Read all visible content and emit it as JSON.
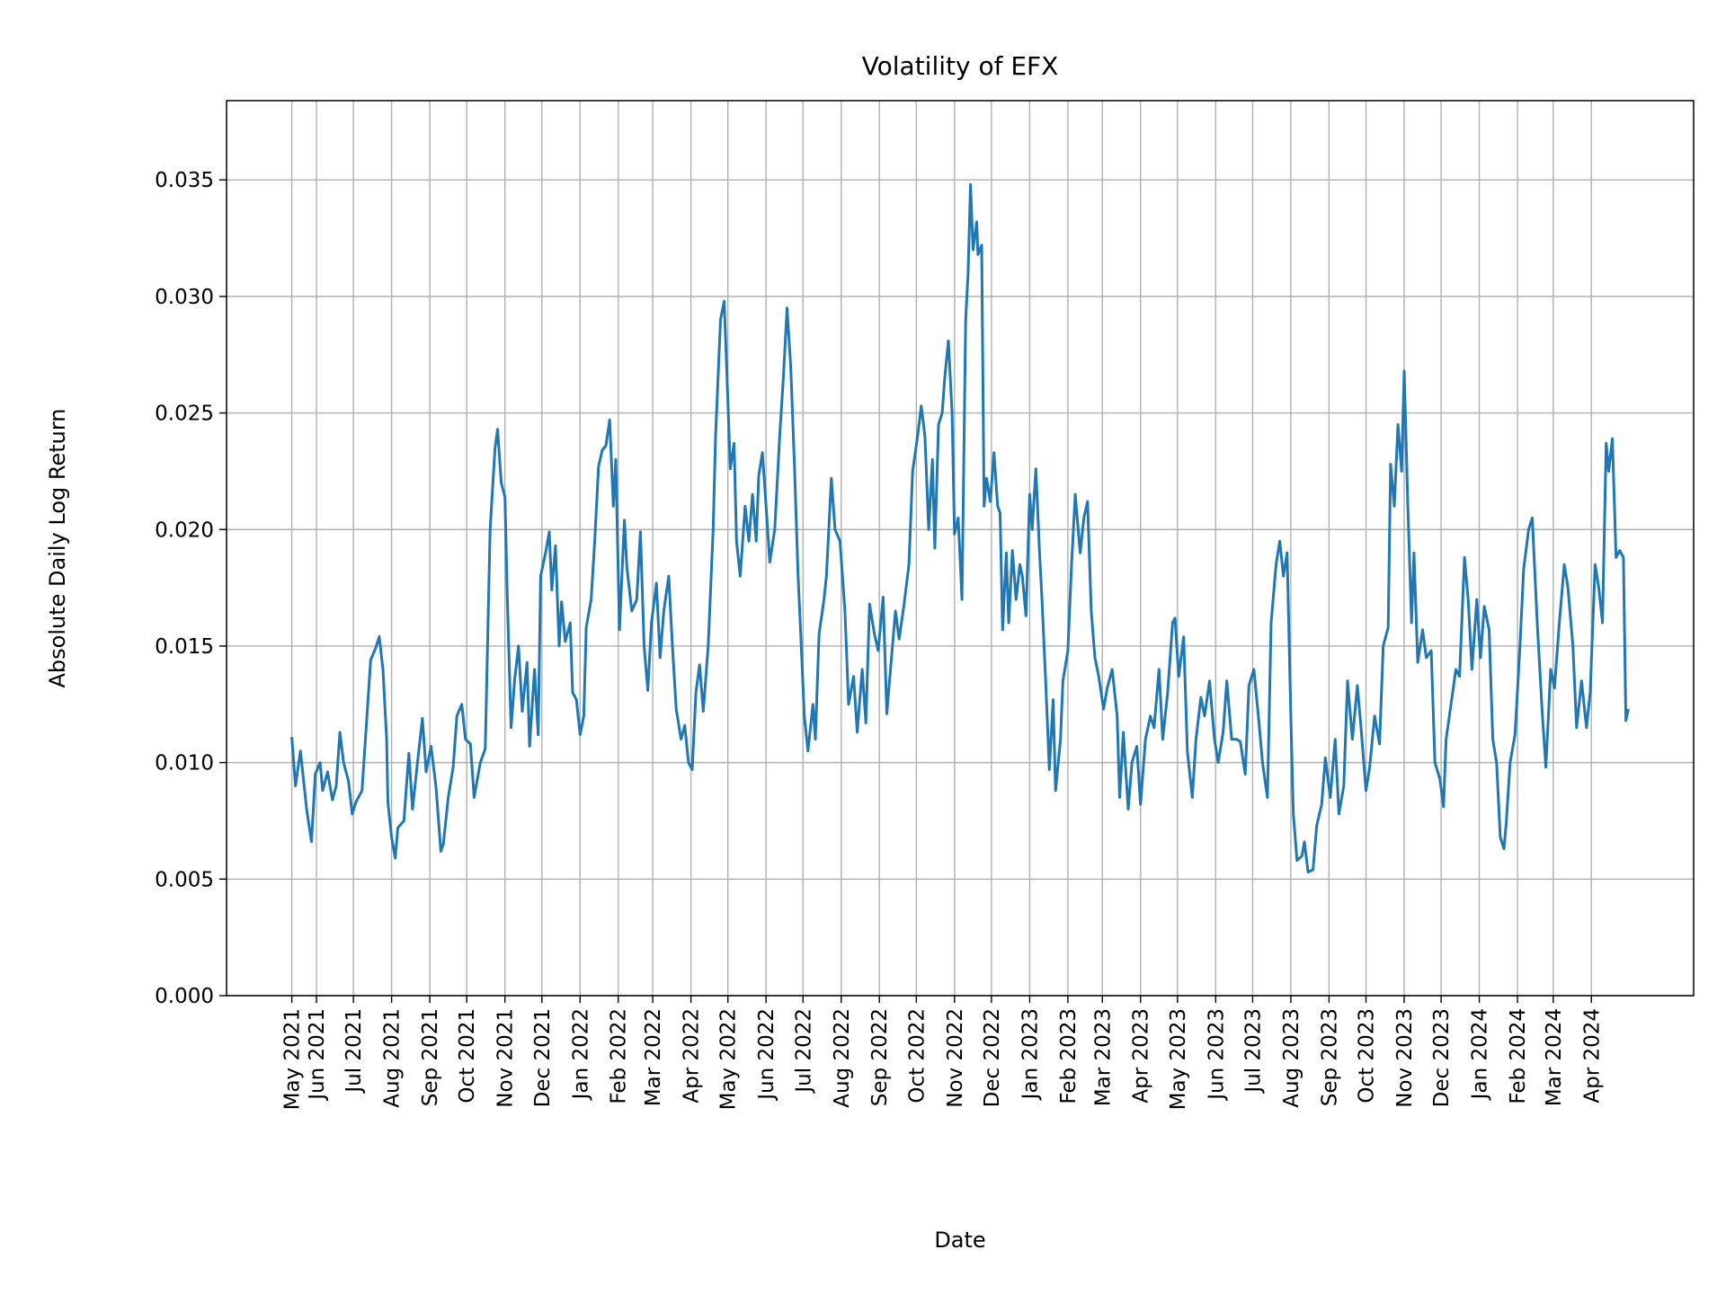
{
  "chart_data": {
    "type": "line",
    "title": "Volatility of EFX",
    "xlabel": "Date",
    "ylabel": "Absolute Daily Log Return",
    "xlim": [
      "2021-03-20",
      "2024-06-23"
    ],
    "ylim": [
      0,
      0.0384
    ],
    "grid": true,
    "colors": {
      "line": "#1f77b4",
      "grid": "#b0b0b0",
      "axes": "#000000"
    },
    "yticks": [
      0.0,
      0.005,
      0.01,
      0.015,
      0.02,
      0.025,
      0.03,
      0.035
    ],
    "ytick_labels": [
      "0.000",
      "0.005",
      "0.010",
      "0.015",
      "0.020",
      "0.025",
      "0.030",
      "0.035"
    ],
    "xticks": [
      "2021-05-12",
      "2021-06-01",
      "2021-07-01",
      "2021-08-01",
      "2021-09-01",
      "2021-10-01",
      "2021-11-01",
      "2021-12-01",
      "2022-01-01",
      "2022-02-01",
      "2022-03-01",
      "2022-04-01",
      "2022-05-01",
      "2022-06-01",
      "2022-07-01",
      "2022-08-01",
      "2022-09-01",
      "2022-10-01",
      "2022-11-01",
      "2022-12-01",
      "2023-01-01",
      "2023-02-01",
      "2023-03-01",
      "2023-04-01",
      "2023-05-01",
      "2023-06-01",
      "2023-07-01",
      "2023-08-01",
      "2023-09-01",
      "2023-10-01",
      "2023-11-01",
      "2023-12-01",
      "2024-01-01",
      "2024-02-01",
      "2024-03-01",
      "2024-04-01"
    ],
    "xtick_labels": [
      "May 2021",
      "Jun 2021",
      "Jul 2021",
      "Aug 2021",
      "Sep 2021",
      "Oct 2021",
      "Nov 2021",
      "Dec 2021",
      "Jan 2022",
      "Feb 2022",
      "Mar 2022",
      "Apr 2022",
      "May 2022",
      "Jun 2022",
      "Jul 2022",
      "Aug 2022",
      "Sep 2022",
      "Oct 2022",
      "Nov 2022",
      "Dec 2022",
      "Jan 2023",
      "Feb 2023",
      "Mar 2023",
      "Apr 2023",
      "May 2023",
      "Jun 2023",
      "Jul 2023",
      "Aug 2023",
      "Sep 2023",
      "Oct 2023",
      "Nov 2023",
      "Dec 2023",
      "Jan 2024",
      "Feb 2024",
      "Mar 2024",
      "Apr 2024"
    ],
    "series": [
      {
        "x": [
          "2021-05-12",
          "2021-05-15",
          "2021-05-19",
          "2021-05-24",
          "2021-05-28",
          "2021-05-31",
          "2021-06-04",
          "2021-06-06",
          "2021-06-10",
          "2021-06-14",
          "2021-06-17",
          "2021-06-20",
          "2021-06-23",
          "2021-06-27",
          "2021-06-30",
          "2021-07-03",
          "2021-07-08",
          "2021-07-12",
          "2021-07-15",
          "2021-07-19",
          "2021-07-22",
          "2021-07-25",
          "2021-07-28",
          "2021-07-29",
          "2021-08-01",
          "2021-08-04",
          "2021-08-06",
          "2021-08-11",
          "2021-08-15",
          "2021-08-18",
          "2021-08-22",
          "2021-08-26",
          "2021-08-29",
          "2021-09-02",
          "2021-09-06",
          "2021-09-10",
          "2021-09-12",
          "2021-09-16",
          "2021-09-20",
          "2021-09-23",
          "2021-09-27",
          "2021-09-30",
          "2021-10-04",
          "2021-10-07",
          "2021-10-12",
          "2021-10-16",
          "2021-10-20",
          "2021-10-24",
          "2021-10-26",
          "2021-10-29",
          "2021-11-01",
          "2021-11-03",
          "2021-11-06",
          "2021-11-09",
          "2021-11-12",
          "2021-11-15",
          "2021-11-19",
          "2021-11-21",
          "2021-11-25",
          "2021-11-28",
          "2021-11-30",
          "2021-12-04",
          "2021-12-07",
          "2021-12-09",
          "2021-12-12",
          "2021-12-15",
          "2021-12-17",
          "2021-12-20",
          "2021-12-24",
          "2021-12-26",
          "2021-12-29",
          "2022-01-01",
          "2022-01-04",
          "2022-01-06",
          "2022-01-10",
          "2022-01-13",
          "2022-01-16",
          "2022-01-19",
          "2022-01-22",
          "2022-01-25",
          "2022-01-28",
          "2022-01-30",
          "2022-02-02",
          "2022-02-06",
          "2022-02-08",
          "2022-02-12",
          "2022-02-16",
          "2022-02-19",
          "2022-02-22",
          "2022-02-25",
          "2022-02-28",
          "2022-03-04",
          "2022-03-07",
          "2022-03-10",
          "2022-03-14",
          "2022-03-17",
          "2022-03-20",
          "2022-03-24",
          "2022-03-27",
          "2022-03-30",
          "2022-04-02",
          "2022-04-05",
          "2022-04-08",
          "2022-04-11",
          "2022-04-15",
          "2022-04-19",
          "2022-04-21",
          "2022-04-25",
          "2022-04-28",
          "2022-04-30",
          "2022-05-03",
          "2022-05-06",
          "2022-05-08",
          "2022-05-11",
          "2022-05-15",
          "2022-05-18",
          "2022-05-21",
          "2022-05-24",
          "2022-05-26",
          "2022-05-29",
          "2022-06-01",
          "2022-06-04",
          "2022-06-08",
          "2022-06-12",
          "2022-06-15",
          "2022-06-18",
          "2022-06-21",
          "2022-06-24",
          "2022-06-27",
          "2022-06-30",
          "2022-07-02",
          "2022-07-05",
          "2022-07-09",
          "2022-07-11",
          "2022-07-14",
          "2022-07-18",
          "2022-07-20",
          "2022-07-24",
          "2022-07-27",
          "2022-07-31",
          "2022-08-04",
          "2022-08-07",
          "2022-08-11",
          "2022-08-14",
          "2022-08-18",
          "2022-08-21",
          "2022-08-24",
          "2022-08-28",
          "2022-08-31",
          "2022-09-04",
          "2022-09-07",
          "2022-09-10",
          "2022-09-14",
          "2022-09-17",
          "2022-09-21",
          "2022-09-25",
          "2022-09-28",
          "2022-10-02",
          "2022-10-05",
          "2022-10-08",
          "2022-10-11",
          "2022-10-14",
          "2022-10-16",
          "2022-10-19",
          "2022-10-22",
          "2022-10-24",
          "2022-10-27",
          "2022-10-30",
          "2022-11-01",
          "2022-11-04",
          "2022-11-07",
          "2022-11-10",
          "2022-11-12",
          "2022-11-14",
          "2022-11-16",
          "2022-11-19",
          "2022-11-20",
          "2022-11-23",
          "2022-11-25",
          "2022-11-27",
          "2022-11-30",
          "2022-12-03",
          "2022-12-06",
          "2022-12-08",
          "2022-12-10",
          "2022-12-13",
          "2022-12-15",
          "2022-12-18",
          "2022-12-21",
          "2022-12-24",
          "2022-12-26",
          "2022-12-29",
          "2023-01-01",
          "2023-01-03",
          "2023-01-06",
          "2023-01-09",
          "2023-01-11",
          "2023-01-14",
          "2023-01-17",
          "2023-01-20",
          "2023-01-22",
          "2023-01-26",
          "2023-01-28",
          "2023-02-01",
          "2023-02-04",
          "2023-02-07",
          "2023-02-11",
          "2023-02-14",
          "2023-02-17",
          "2023-02-20",
          "2023-02-23",
          "2023-02-26",
          "2023-03-02",
          "2023-03-05",
          "2023-03-09",
          "2023-03-13",
          "2023-03-15",
          "2023-03-18",
          "2023-03-22",
          "2023-03-25",
          "2023-03-29",
          "2023-04-01",
          "2023-04-05",
          "2023-04-09",
          "2023-04-12",
          "2023-04-16",
          "2023-04-19",
          "2023-04-23",
          "2023-04-27",
          "2023-04-29",
          "2023-05-02",
          "2023-05-06",
          "2023-05-09",
          "2023-05-13",
          "2023-05-16",
          "2023-05-20",
          "2023-05-23",
          "2023-05-27",
          "2023-05-31",
          "2023-06-03",
          "2023-06-07",
          "2023-06-10",
          "2023-06-14",
          "2023-06-18",
          "2023-06-21",
          "2023-06-25",
          "2023-06-28",
          "2023-07-02",
          "2023-07-06",
          "2023-07-09",
          "2023-07-13",
          "2023-07-16",
          "2023-07-20",
          "2023-07-23",
          "2023-07-26",
          "2023-07-29",
          "2023-08-01",
          "2023-08-03",
          "2023-08-06",
          "2023-08-10",
          "2023-08-12",
          "2023-08-15",
          "2023-08-19",
          "2023-08-22",
          "2023-08-26",
          "2023-08-29",
          "2023-09-02",
          "2023-09-06",
          "2023-09-09",
          "2023-09-13",
          "2023-09-16",
          "2023-09-20",
          "2023-09-24",
          "2023-09-27",
          "2023-10-01",
          "2023-10-04",
          "2023-10-08",
          "2023-10-12",
          "2023-10-15",
          "2023-10-19",
          "2023-10-21",
          "2023-10-24",
          "2023-10-27",
          "2023-10-30",
          "2023-11-01",
          "2023-11-04",
          "2023-11-07",
          "2023-11-09",
          "2023-11-12",
          "2023-11-16",
          "2023-11-19",
          "2023-11-23",
          "2023-11-26",
          "2023-11-30",
          "2023-12-03",
          "2023-12-05",
          "2023-12-09",
          "2023-12-13",
          "2023-12-16",
          "2023-12-20",
          "2023-12-23",
          "2023-12-26",
          "2023-12-30",
          "2024-01-02",
          "2024-01-05",
          "2024-01-09",
          "2024-01-12",
          "2024-01-15",
          "2024-01-18",
          "2024-01-21",
          "2024-01-23",
          "2024-01-26",
          "2024-01-30",
          "2024-02-03",
          "2024-02-06",
          "2024-02-10",
          "2024-02-13",
          "2024-02-17",
          "2024-02-21",
          "2024-02-24",
          "2024-02-28",
          "2024-03-02",
          "2024-03-06",
          "2024-03-10",
          "2024-03-13",
          "2024-03-17",
          "2024-03-20",
          "2024-03-24",
          "2024-03-28",
          "2024-03-31",
          "2024-04-04",
          "2024-04-07",
          "2024-04-10",
          "2024-04-13",
          "2024-04-15",
          "2024-04-18",
          "2024-04-21",
          "2024-04-24",
          "2024-04-27",
          "2024-04-29",
          "2024-05-01"
        ],
        "y": [
          0.0111,
          0.009,
          0.0105,
          0.008,
          0.0066,
          0.0095,
          0.01,
          0.0088,
          0.0096,
          0.0084,
          0.009,
          0.0113,
          0.01,
          0.0092,
          0.0078,
          0.0083,
          0.0088,
          0.012,
          0.0144,
          0.0149,
          0.0154,
          0.014,
          0.011,
          0.0083,
          0.0068,
          0.0059,
          0.0072,
          0.0075,
          0.0104,
          0.008,
          0.01,
          0.0119,
          0.0096,
          0.0107,
          0.009,
          0.0062,
          0.0065,
          0.0085,
          0.0098,
          0.012,
          0.0125,
          0.011,
          0.0108,
          0.0085,
          0.01,
          0.0106,
          0.02,
          0.0235,
          0.0243,
          0.022,
          0.0214,
          0.017,
          0.0115,
          0.0136,
          0.015,
          0.0122,
          0.0143,
          0.0107,
          0.014,
          0.0112,
          0.018,
          0.019,
          0.0199,
          0.0174,
          0.0193,
          0.015,
          0.0169,
          0.0152,
          0.016,
          0.013,
          0.0127,
          0.0112,
          0.012,
          0.0158,
          0.017,
          0.0196,
          0.0227,
          0.0234,
          0.0236,
          0.0247,
          0.021,
          0.023,
          0.0157,
          0.0204,
          0.0184,
          0.0165,
          0.017,
          0.0199,
          0.015,
          0.0131,
          0.016,
          0.0177,
          0.0145,
          0.0165,
          0.018,
          0.015,
          0.0123,
          0.011,
          0.0116,
          0.01,
          0.0097,
          0.013,
          0.0142,
          0.0122,
          0.015,
          0.02,
          0.024,
          0.029,
          0.0298,
          0.027,
          0.0226,
          0.0237,
          0.0195,
          0.018,
          0.021,
          0.0195,
          0.0215,
          0.0195,
          0.0223,
          0.0233,
          0.021,
          0.0186,
          0.02,
          0.024,
          0.0265,
          0.0295,
          0.027,
          0.0228,
          0.018,
          0.0145,
          0.012,
          0.0105,
          0.0125,
          0.011,
          0.0155,
          0.017,
          0.018,
          0.0222,
          0.02,
          0.0195,
          0.0165,
          0.0125,
          0.0137,
          0.0113,
          0.014,
          0.0117,
          0.0168,
          0.0155,
          0.0148,
          0.0171,
          0.0121,
          0.014,
          0.0165,
          0.0153,
          0.0168,
          0.0185,
          0.0225,
          0.024,
          0.0253,
          0.024,
          0.02,
          0.023,
          0.0192,
          0.0245,
          0.025,
          0.0265,
          0.0281,
          0.025,
          0.0198,
          0.0205,
          0.017,
          0.029,
          0.031,
          0.0348,
          0.032,
          0.0332,
          0.0318,
          0.0322,
          0.021,
          0.0222,
          0.0212,
          0.0233,
          0.021,
          0.0207,
          0.0157,
          0.019,
          0.016,
          0.0191,
          0.017,
          0.0185,
          0.018,
          0.0163,
          0.0215,
          0.02,
          0.0226,
          0.019,
          0.017,
          0.0135,
          0.0097,
          0.0127,
          0.0088,
          0.011,
          0.0135,
          0.0148,
          0.0185,
          0.0215,
          0.019,
          0.0205,
          0.0212,
          0.0165,
          0.0145,
          0.0137,
          0.0123,
          0.0132,
          0.014,
          0.012,
          0.0085,
          0.0113,
          0.008,
          0.01,
          0.0107,
          0.0082,
          0.011,
          0.012,
          0.0115,
          0.014,
          0.011,
          0.013,
          0.016,
          0.0162,
          0.0137,
          0.0154,
          0.0105,
          0.0085,
          0.011,
          0.0128,
          0.012,
          0.0135,
          0.011,
          0.01,
          0.0113,
          0.0135,
          0.011,
          0.011,
          0.0109,
          0.0095,
          0.0133,
          0.014,
          0.0118,
          0.01,
          0.0085,
          0.016,
          0.0185,
          0.0195,
          0.018,
          0.019,
          0.012,
          0.0078,
          0.0058,
          0.006,
          0.0066,
          0.0053,
          0.0054,
          0.0073,
          0.0082,
          0.0102,
          0.0085,
          0.011,
          0.0078,
          0.009,
          0.0135,
          0.011,
          0.0133,
          0.0115,
          0.0088,
          0.0098,
          0.012,
          0.0108,
          0.015,
          0.0158,
          0.0228,
          0.021,
          0.0245,
          0.0225,
          0.0268,
          0.021,
          0.016,
          0.019,
          0.0143,
          0.0157,
          0.0145,
          0.0148,
          0.01,
          0.0093,
          0.0081,
          0.011,
          0.0125,
          0.014,
          0.0137,
          0.0188,
          0.017,
          0.014,
          0.017,
          0.0145,
          0.0167,
          0.0157,
          0.011,
          0.01,
          0.0068,
          0.0063,
          0.0075,
          0.01,
          0.0112,
          0.015,
          0.0183,
          0.02,
          0.0205,
          0.016,
          0.0122,
          0.0098,
          0.014,
          0.0132,
          0.016,
          0.0185,
          0.0175,
          0.015,
          0.0115,
          0.0135,
          0.0115,
          0.013,
          0.0185,
          0.0175,
          0.016,
          0.0237,
          0.0225,
          0.0239,
          0.0188,
          0.0191,
          0.0188,
          0.0118,
          0.0123
        ]
      }
    ]
  }
}
